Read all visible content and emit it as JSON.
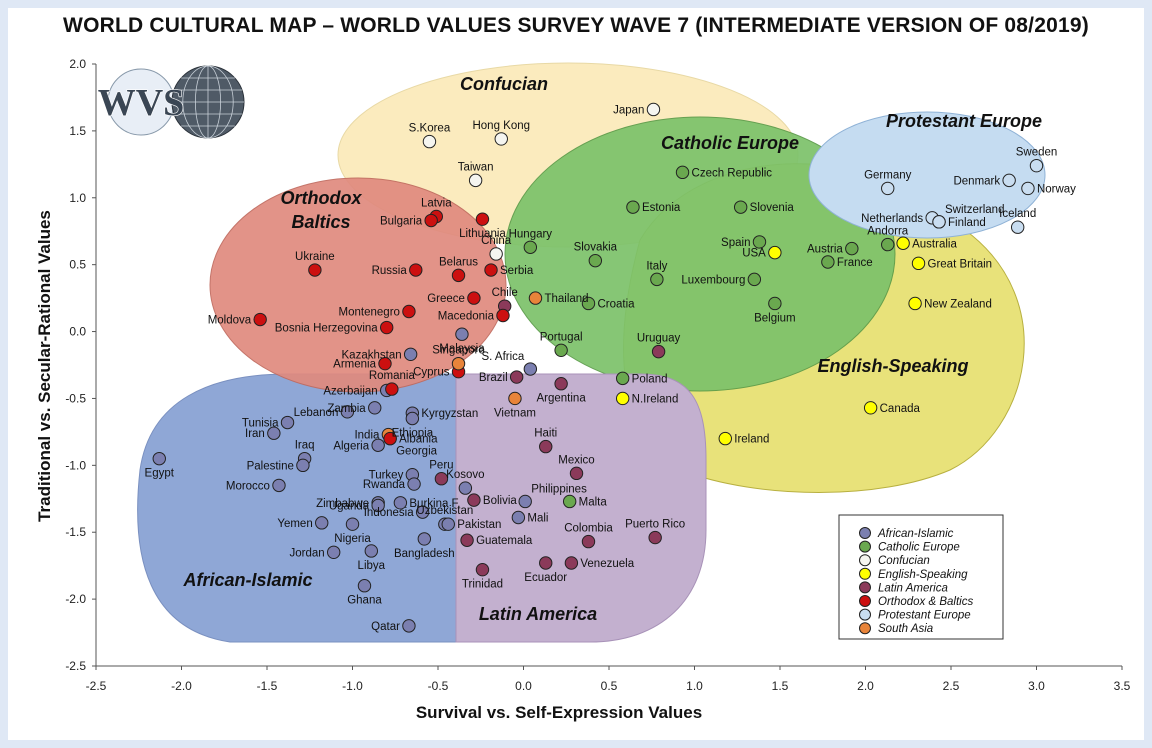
{
  "title": "WORLD CULTURAL MAP – WORLD VALUES SURVEY WAVE 7 (INTERMEDIATE VERSION OF 08/2019)",
  "logo_text": "WVS",
  "chart_data": {
    "type": "scatter",
    "title": "WORLD CULTURAL MAP – WORLD VALUES SURVEY WAVE 7 (INTERMEDIATE VERSION OF 08/2019)",
    "xlabel": "Survival vs. Self-Expression Values",
    "ylabel": "Traditional vs. Secular-Rational Values",
    "xlim": [
      -2.5,
      3.5
    ],
    "ylim": [
      -2.5,
      2.0
    ],
    "xticks": [
      "-2.5",
      "-2.0",
      "-1.5",
      "-1.0",
      "-0.5",
      "0.0",
      "0.5",
      "1.0",
      "1.5",
      "2.0",
      "2.5",
      "3.0",
      "3.5"
    ],
    "yticks": [
      "2.0",
      "1.5",
      "1.0",
      "0.5",
      "0.0",
      "-0.5",
      "-1.0",
      "-1.5",
      "-2.0",
      "-2.5"
    ],
    "legend_position": "bottom-right",
    "groups": [
      {
        "key": "AI",
        "name": "African-Islamic",
        "color": "#7b7fb0"
      },
      {
        "key": "CE",
        "name": "Catholic Europe",
        "color": "#6aa84f"
      },
      {
        "key": "CO",
        "name": "Confucian",
        "color": "#f5f5f0"
      },
      {
        "key": "ES",
        "name": "English-Speaking",
        "color": "#ffff00"
      },
      {
        "key": "LA",
        "name": "Latin America",
        "color": "#8b3a5a"
      },
      {
        "key": "OB",
        "name": "Orthodox & Baltics",
        "color": "#cc1010"
      },
      {
        "key": "PE",
        "name": "Protestant Europe",
        "color": "#c9ddf0"
      },
      {
        "key": "SA",
        "name": "South Asia",
        "color": "#e8843a"
      }
    ],
    "regions": [
      {
        "name": "Confucian",
        "label": "Confucian",
        "fill": "#fbe9b8"
      },
      {
        "name": "Catholic Europe",
        "label": "Catholic Europe",
        "fill": "#7cc26a"
      },
      {
        "name": "English-Speaking",
        "label": "English-Speaking",
        "fill": "#e8e27a"
      },
      {
        "name": "Protestant Europe",
        "label": "Protestant Europe",
        "fill": "#c5dcf1"
      },
      {
        "name": "Orthodox Baltics",
        "label_lines": [
          "Orthodox",
          "Baltics"
        ],
        "fill": "#e08a7e"
      },
      {
        "name": "African-Islamic",
        "label": "African-Islamic",
        "fill": "#8fa7d6"
      },
      {
        "name": "Latin America",
        "label": "Latin America",
        "fill": "#c3b0cf"
      }
    ],
    "points": [
      {
        "label": "Egypt",
        "x": -2.13,
        "y": -0.95,
        "g": "AI",
        "lp": "below"
      },
      {
        "label": "Tunisia",
        "x": -1.38,
        "y": -0.68,
        "g": "AI",
        "lp": "left"
      },
      {
        "label": "Iran",
        "x": -1.46,
        "y": -0.76,
        "g": "AI",
        "lp": "left"
      },
      {
        "label": "Iraq",
        "x": -1.28,
        "y": -0.95,
        "g": "AI",
        "lp": "above"
      },
      {
        "label": "Palestine",
        "x": -1.29,
        "y": -1.0,
        "g": "AI",
        "lp": "left"
      },
      {
        "label": "Morocco",
        "x": -1.43,
        "y": -1.15,
        "g": "AI",
        "lp": "left"
      },
      {
        "label": "Yemen",
        "x": -1.18,
        "y": -1.43,
        "g": "AI",
        "lp": "left"
      },
      {
        "label": "Jordan",
        "x": -1.11,
        "y": -1.65,
        "g": "AI",
        "lp": "left"
      },
      {
        "label": "Lebanon",
        "x": -1.03,
        "y": -0.6,
        "g": "AI",
        "lp": "left"
      },
      {
        "label": "Zambia",
        "x": -0.87,
        "y": -0.57,
        "g": "AI",
        "lp": "left"
      },
      {
        "label": "Kyrgyzstan",
        "x": -0.65,
        "y": -0.61,
        "g": "AI",
        "lp": "right"
      },
      {
        "label": "Ethiopia",
        "x": -0.65,
        "y": -0.65,
        "g": "AI",
        "lp": "below"
      },
      {
        "label": "Algeria",
        "x": -0.85,
        "y": -0.85,
        "g": "AI",
        "lp": "left"
      },
      {
        "label": "Turkey",
        "x": -0.65,
        "y": -1.07,
        "g": "AI",
        "lp": "left"
      },
      {
        "label": "Rwanda",
        "x": -0.64,
        "y": -1.14,
        "g": "AI",
        "lp": "left"
      },
      {
        "label": "Zimbabwe",
        "x": -0.85,
        "y": -1.28,
        "g": "AI",
        "lp": "left"
      },
      {
        "label": "Uganda",
        "x": -0.85,
        "y": -1.3,
        "g": "AI",
        "lp": "left"
      },
      {
        "label": "Burkina F.",
        "x": -0.72,
        "y": -1.28,
        "g": "AI",
        "lp": "right"
      },
      {
        "label": "Indonesia",
        "x": -0.59,
        "y": -1.35,
        "g": "AI",
        "lp": "left"
      },
      {
        "label": "Uzbekistan",
        "x": -0.46,
        "y": -1.44,
        "g": "AI",
        "lp": "above"
      },
      {
        "label": "Pakistan",
        "x": -0.44,
        "y": -1.44,
        "g": "AI",
        "lp": "right"
      },
      {
        "label": "Nigeria",
        "x": -1.0,
        "y": -1.44,
        "g": "AI",
        "lp": "below"
      },
      {
        "label": "Bangladesh",
        "x": -0.58,
        "y": -1.55,
        "g": "AI",
        "lp": "below"
      },
      {
        "label": "Libya",
        "x": -0.89,
        "y": -1.64,
        "g": "AI",
        "lp": "below"
      },
      {
        "label": "Ghana",
        "x": -0.93,
        "y": -1.9,
        "g": "AI",
        "lp": "below"
      },
      {
        "label": "Qatar",
        "x": -0.67,
        "y": -2.2,
        "g": "AI",
        "lp": "left"
      },
      {
        "label": "Kazakhstan",
        "x": -0.66,
        "y": -0.17,
        "g": "AI",
        "lp": "left"
      },
      {
        "label": "Azerbaijan",
        "x": -0.8,
        "y": -0.44,
        "g": "AI",
        "lp": "left"
      },
      {
        "label": "Malaysia",
        "x": -0.36,
        "y": -0.02,
        "g": "AI",
        "lp": "below"
      },
      {
        "label": "Kosovo",
        "x": -0.34,
        "y": -1.17,
        "g": "AI",
        "lp": "above"
      },
      {
        "label": "Mali",
        "x": -0.03,
        "y": -1.39,
        "g": "AI",
        "lp": "right"
      },
      {
        "label": "Czech Republic",
        "x": 0.93,
        "y": 1.19,
        "g": "CE",
        "lp": "right"
      },
      {
        "label": "Estonia",
        "x": 0.64,
        "y": 0.93,
        "g": "CE",
        "lp": "right"
      },
      {
        "label": "Slovenia",
        "x": 1.27,
        "y": 0.93,
        "g": "CE",
        "lp": "right"
      },
      {
        "label": "Hungary",
        "x": 0.04,
        "y": 0.63,
        "g": "CE",
        "lp": "above"
      },
      {
        "label": "Slovakia",
        "x": 0.42,
        "y": 0.53,
        "g": "CE",
        "lp": "above"
      },
      {
        "label": "Spain",
        "x": 1.38,
        "y": 0.67,
        "g": "CE",
        "lp": "left"
      },
      {
        "label": "Italy",
        "x": 0.78,
        "y": 0.39,
        "g": "CE",
        "lp": "above"
      },
      {
        "label": "Luxembourg",
        "x": 1.35,
        "y": 0.39,
        "g": "CE",
        "lp": "left"
      },
      {
        "label": "Austria",
        "x": 1.92,
        "y": 0.62,
        "g": "CE",
        "lp": "left"
      },
      {
        "label": "Andorra",
        "x": 2.13,
        "y": 0.65,
        "g": "CE",
        "lp": "above"
      },
      {
        "label": "France",
        "x": 1.78,
        "y": 0.52,
        "g": "CE",
        "lp": "right"
      },
      {
        "label": "Croatia",
        "x": 0.38,
        "y": 0.21,
        "g": "CE",
        "lp": "right"
      },
      {
        "label": "Belgium",
        "x": 1.47,
        "y": 0.21,
        "g": "CE",
        "lp": "below"
      },
      {
        "label": "Portugal",
        "x": 0.22,
        "y": -0.14,
        "g": "CE",
        "lp": "above"
      },
      {
        "label": "Poland",
        "x": 0.58,
        "y": -0.35,
        "g": "CE",
        "lp": "right"
      },
      {
        "label": "Malta",
        "x": 0.27,
        "y": -1.27,
        "g": "CE",
        "lp": "right"
      },
      {
        "label": "Japan",
        "x": 0.76,
        "y": 1.66,
        "g": "CO",
        "lp": "left"
      },
      {
        "label": "S.Korea",
        "x": -0.55,
        "y": 1.42,
        "g": "CO",
        "lp": "above"
      },
      {
        "label": "Hong Kong",
        "x": -0.13,
        "y": 1.44,
        "g": "CO",
        "lp": "above"
      },
      {
        "label": "Taiwan",
        "x": -0.28,
        "y": 1.13,
        "g": "CO",
        "lp": "above"
      },
      {
        "label": "China",
        "x": -0.16,
        "y": 0.58,
        "g": "CO",
        "lp": "above"
      },
      {
        "label": "USA",
        "x": 1.47,
        "y": 0.59,
        "g": "ES",
        "lp": "left"
      },
      {
        "label": "Australia",
        "x": 2.22,
        "y": 0.66,
        "g": "ES",
        "lp": "right"
      },
      {
        "label": "Great Britain",
        "x": 2.31,
        "y": 0.51,
        "g": "ES",
        "lp": "right"
      },
      {
        "label": "New Zealand",
        "x": 2.29,
        "y": 0.21,
        "g": "ES",
        "lp": "right"
      },
      {
        "label": "Canada",
        "x": 2.03,
        "y": -0.57,
        "g": "ES",
        "lp": "right"
      },
      {
        "label": "N.Ireland",
        "x": 0.58,
        "y": -0.5,
        "g": "ES",
        "lp": "right"
      },
      {
        "label": "Ireland",
        "x": 1.18,
        "y": -0.8,
        "g": "ES",
        "lp": "right"
      },
      {
        "label": "Chile",
        "x": -0.11,
        "y": 0.19,
        "g": "LA",
        "lp": "above"
      },
      {
        "label": "Uruguay",
        "x": 0.79,
        "y": -0.15,
        "g": "LA",
        "lp": "above"
      },
      {
        "label": "Argentina",
        "x": 0.22,
        "y": -0.39,
        "g": "LA",
        "lp": "below"
      },
      {
        "label": "Haiti",
        "x": 0.13,
        "y": -0.86,
        "g": "LA",
        "lp": "above"
      },
      {
        "label": "Mexico",
        "x": 0.31,
        "y": -1.06,
        "g": "LA",
        "lp": "above"
      },
      {
        "label": "Peru",
        "x": -0.48,
        "y": -1.1,
        "g": "LA",
        "lp": "above"
      },
      {
        "label": "Bolivia",
        "x": -0.29,
        "y": -1.26,
        "g": "LA",
        "lp": "right"
      },
      {
        "label": "Guatemala",
        "x": -0.33,
        "y": -1.56,
        "g": "LA",
        "lp": "right"
      },
      {
        "label": "Colombia",
        "x": 0.38,
        "y": -1.57,
        "g": "LA",
        "lp": "above"
      },
      {
        "label": "Puerto Rico",
        "x": 0.77,
        "y": -1.54,
        "g": "LA",
        "lp": "above"
      },
      {
        "label": "Venezuela",
        "x": 0.28,
        "y": -1.73,
        "g": "LA",
        "lp": "right"
      },
      {
        "label": "Ecuador",
        "x": 0.13,
        "y": -1.73,
        "g": "LA",
        "lp": "below"
      },
      {
        "label": "Trinidad",
        "x": -0.24,
        "y": -1.78,
        "g": "LA",
        "lp": "below"
      },
      {
        "label": "Latvia",
        "x": -0.51,
        "y": 0.86,
        "g": "OB",
        "lp": "above"
      },
      {
        "label": "Bulgaria",
        "x": -0.54,
        "y": 0.83,
        "g": "OB",
        "lp": "left"
      },
      {
        "label": "Lithuania",
        "x": -0.24,
        "y": 0.84,
        "g": "OB",
        "lp": "below"
      },
      {
        "label": "Ukraine",
        "x": -1.22,
        "y": 0.46,
        "g": "OB",
        "lp": "above"
      },
      {
        "label": "Russia",
        "x": -0.63,
        "y": 0.46,
        "g": "OB",
        "lp": "left"
      },
      {
        "label": "Belarus",
        "x": -0.38,
        "y": 0.42,
        "g": "OB",
        "lp": "above"
      },
      {
        "label": "Serbia",
        "x": -0.19,
        "y": 0.46,
        "g": "OB",
        "lp": "right"
      },
      {
        "label": "Greece",
        "x": -0.29,
        "y": 0.25,
        "g": "OB",
        "lp": "left"
      },
      {
        "label": "Montenegro",
        "x": -0.67,
        "y": 0.15,
        "g": "OB",
        "lp": "left"
      },
      {
        "label": "Macedonia",
        "x": -0.12,
        "y": 0.12,
        "g": "OB",
        "lp": "left"
      },
      {
        "label": "Moldova",
        "x": -1.54,
        "y": 0.09,
        "g": "OB",
        "lp": "left"
      },
      {
        "label": "Bosnia Herzegovina",
        "x": -0.8,
        "y": 0.03,
        "g": "OB",
        "lp": "left"
      },
      {
        "label": "Armenia",
        "x": -0.81,
        "y": -0.24,
        "g": "OB",
        "lp": "left"
      },
      {
        "label": "Cyprus",
        "x": -0.38,
        "y": -0.3,
        "g": "OB",
        "lp": "left"
      },
      {
        "label": "Romania",
        "x": -0.77,
        "y": -0.43,
        "g": "OB",
        "lp": "above"
      },
      {
        "label": "Georgia",
        "x": -0.78,
        "y": -0.8,
        "g": "OB",
        "lp": "below-right"
      },
      {
        "label": "Sweden",
        "x": 3.0,
        "y": 1.24,
        "g": "PE",
        "lp": "above"
      },
      {
        "label": "Denmark",
        "x": 2.84,
        "y": 1.13,
        "g": "PE",
        "lp": "left"
      },
      {
        "label": "Norway",
        "x": 2.95,
        "y": 1.07,
        "g": "PE",
        "lp": "right"
      },
      {
        "label": "Germany",
        "x": 2.13,
        "y": 1.07,
        "g": "PE",
        "lp": "above"
      },
      {
        "label": "Netherlands",
        "x": 2.39,
        "y": 0.85,
        "g": "PE",
        "lp": "left"
      },
      {
        "label": "Switzerland",
        "x": 2.43,
        "y": 0.82,
        "g": "PE",
        "lp": "above-right"
      },
      {
        "label": "Finland",
        "x": 2.43,
        "y": 0.82,
        "g": "PE",
        "lp": "right"
      },
      {
        "label": "Iceland",
        "x": 2.89,
        "y": 0.78,
        "g": "PE",
        "lp": "above"
      },
      {
        "label": "Thailand",
        "x": 0.07,
        "y": 0.25,
        "g": "SA",
        "lp": "right"
      },
      {
        "label": "Singapore",
        "x": -0.38,
        "y": -0.24,
        "g": "SA",
        "lp": "above"
      },
      {
        "label": "Vietnam",
        "x": -0.05,
        "y": -0.5,
        "g": "SA",
        "lp": "below"
      },
      {
        "label": "India",
        "x": -0.79,
        "y": -0.77,
        "g": "SA",
        "lp": "left"
      },
      {
        "label": "S. Africa",
        "x": 0.04,
        "y": -0.28,
        "g": "AI",
        "lp": "above-left"
      },
      {
        "label": "Brazil",
        "x": -0.04,
        "y": -0.34,
        "g": "LA",
        "lp": "left"
      },
      {
        "label": "Philippines",
        "x": 0.01,
        "y": -1.27,
        "g": "AI",
        "lp": "above-right"
      },
      {
        "label": "Albania",
        "x": -0.78,
        "y": -0.8,
        "g": "OB",
        "lp": "right"
      }
    ]
  }
}
